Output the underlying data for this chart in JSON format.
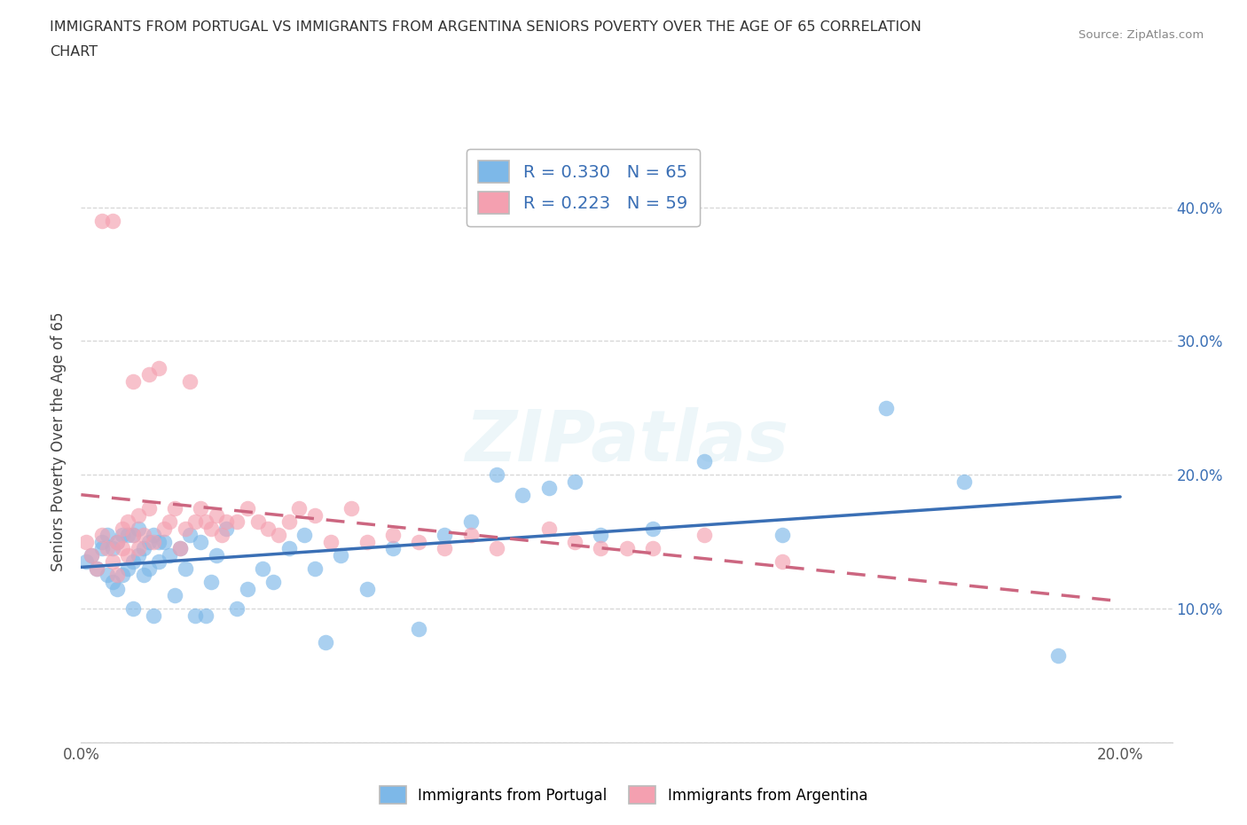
{
  "title_line1": "IMMIGRANTS FROM PORTUGAL VS IMMIGRANTS FROM ARGENTINA SENIORS POVERTY OVER THE AGE OF 65 CORRELATION",
  "title_line2": "CHART",
  "source": "Source: ZipAtlas.com",
  "ylabel": "Seniors Poverty Over the Age of 65",
  "xlim": [
    0.0,
    0.21
  ],
  "ylim": [
    0.0,
    0.45
  ],
  "R_portugal": 0.33,
  "N_portugal": 65,
  "R_argentina": 0.223,
  "N_argentina": 59,
  "color_portugal": "#7db8e8",
  "color_argentina": "#f4a0b0",
  "line_color_portugal": "#3a6fb5",
  "line_color_argentina": "#cc6680",
  "portugal_x": [
    0.001,
    0.002,
    0.003,
    0.004,
    0.004,
    0.005,
    0.005,
    0.006,
    0.006,
    0.007,
    0.007,
    0.008,
    0.008,
    0.009,
    0.009,
    0.01,
    0.01,
    0.01,
    0.011,
    0.011,
    0.012,
    0.012,
    0.013,
    0.013,
    0.014,
    0.014,
    0.015,
    0.015,
    0.016,
    0.017,
    0.018,
    0.019,
    0.02,
    0.021,
    0.022,
    0.023,
    0.024,
    0.025,
    0.026,
    0.028,
    0.03,
    0.032,
    0.035,
    0.037,
    0.04,
    0.043,
    0.045,
    0.047,
    0.05,
    0.055,
    0.06,
    0.065,
    0.07,
    0.075,
    0.08,
    0.085,
    0.09,
    0.095,
    0.1,
    0.11,
    0.12,
    0.135,
    0.155,
    0.17,
    0.188
  ],
  "portugal_y": [
    0.135,
    0.14,
    0.13,
    0.15,
    0.145,
    0.125,
    0.155,
    0.12,
    0.145,
    0.115,
    0.15,
    0.125,
    0.155,
    0.13,
    0.155,
    0.135,
    0.155,
    0.1,
    0.14,
    0.16,
    0.145,
    0.125,
    0.15,
    0.13,
    0.155,
    0.095,
    0.15,
    0.135,
    0.15,
    0.14,
    0.11,
    0.145,
    0.13,
    0.155,
    0.095,
    0.15,
    0.095,
    0.12,
    0.14,
    0.16,
    0.1,
    0.115,
    0.13,
    0.12,
    0.145,
    0.155,
    0.13,
    0.075,
    0.14,
    0.115,
    0.145,
    0.085,
    0.155,
    0.165,
    0.2,
    0.185,
    0.19,
    0.195,
    0.155,
    0.16,
    0.21,
    0.155,
    0.25,
    0.195,
    0.065
  ],
  "argentina_x": [
    0.001,
    0.002,
    0.003,
    0.004,
    0.004,
    0.005,
    0.006,
    0.006,
    0.007,
    0.007,
    0.008,
    0.008,
    0.009,
    0.009,
    0.01,
    0.01,
    0.011,
    0.011,
    0.012,
    0.013,
    0.013,
    0.014,
    0.015,
    0.016,
    0.017,
    0.018,
    0.019,
    0.02,
    0.021,
    0.022,
    0.023,
    0.024,
    0.025,
    0.026,
    0.027,
    0.028,
    0.03,
    0.032,
    0.034,
    0.036,
    0.038,
    0.04,
    0.042,
    0.045,
    0.048,
    0.052,
    0.055,
    0.06,
    0.065,
    0.07,
    0.075,
    0.08,
    0.09,
    0.095,
    0.1,
    0.105,
    0.11,
    0.12,
    0.135
  ],
  "argentina_y": [
    0.15,
    0.14,
    0.13,
    0.155,
    0.39,
    0.145,
    0.135,
    0.39,
    0.15,
    0.125,
    0.16,
    0.145,
    0.165,
    0.14,
    0.27,
    0.155,
    0.17,
    0.145,
    0.155,
    0.275,
    0.175,
    0.15,
    0.28,
    0.16,
    0.165,
    0.175,
    0.145,
    0.16,
    0.27,
    0.165,
    0.175,
    0.165,
    0.16,
    0.17,
    0.155,
    0.165,
    0.165,
    0.175,
    0.165,
    0.16,
    0.155,
    0.165,
    0.175,
    0.17,
    0.15,
    0.175,
    0.15,
    0.155,
    0.15,
    0.145,
    0.155,
    0.145,
    0.16,
    0.15,
    0.145,
    0.145,
    0.145,
    0.155,
    0.135
  ]
}
